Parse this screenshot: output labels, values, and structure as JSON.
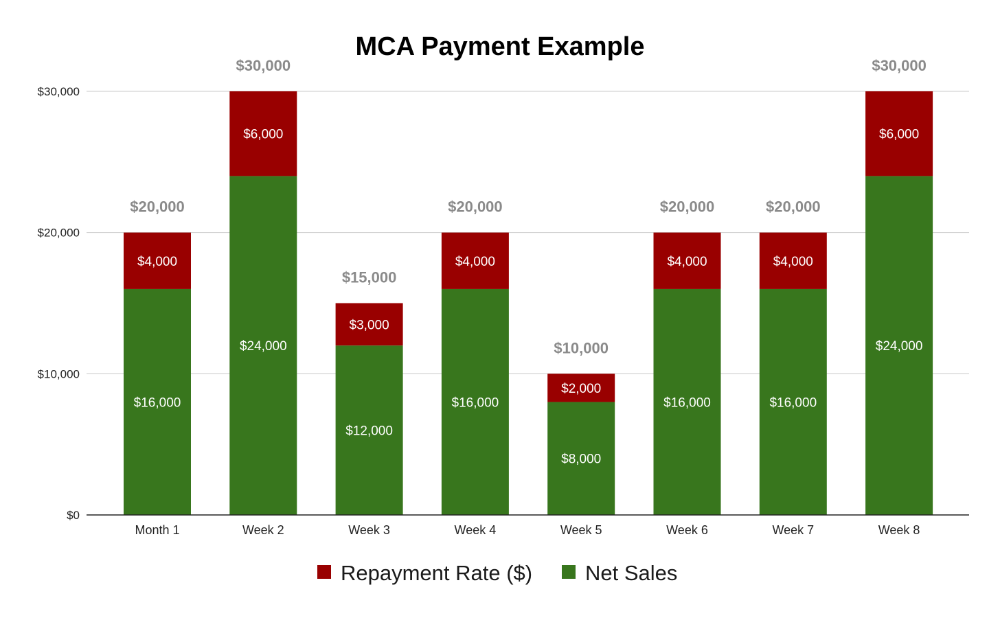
{
  "chart_data": {
    "type": "bar",
    "stacked": true,
    "title": "MCA Payment Example",
    "xlabel": "",
    "ylabel": "",
    "categories": [
      "Month 1",
      "Week 2",
      "Week 3",
      "Week 4",
      "Week 5",
      "Week 6",
      "Week 7",
      "Week 8"
    ],
    "series": [
      {
        "name": "Net Sales",
        "color": "#38761d",
        "values": [
          16000,
          24000,
          12000,
          16000,
          8000,
          16000,
          16000,
          24000
        ],
        "labels": [
          "$16,000",
          "$24,000",
          "$12,000",
          "$16,000",
          "$8,000",
          "$16,000",
          "$16,000",
          "$24,000"
        ]
      },
      {
        "name": "Repayment Rate ($)",
        "color": "#990000",
        "values": [
          4000,
          6000,
          3000,
          4000,
          2000,
          4000,
          4000,
          6000
        ],
        "labels": [
          "$4,000",
          "$6,000",
          "$3,000",
          "$4,000",
          "$2,000",
          "$4,000",
          "$4,000",
          "$6,000"
        ]
      }
    ],
    "totals": [
      20000,
      30000,
      15000,
      20000,
      10000,
      20000,
      20000,
      30000
    ],
    "total_labels": [
      "$20,000",
      "$30,000",
      "$15,000",
      "$20,000",
      "$10,000",
      "$20,000",
      "$20,000",
      "$30,000"
    ],
    "ylim": [
      0,
      30000
    ],
    "yticks": [
      0,
      10000,
      20000,
      30000
    ],
    "ytick_labels": [
      "$0",
      "$10,000",
      "$20,000",
      "$30,000"
    ],
    "grid": true,
    "legend_position": "bottom",
    "legend": [
      {
        "name": "Repayment Rate ($)",
        "color": "#990000"
      },
      {
        "name": "Net Sales",
        "color": "#38761d"
      }
    ]
  }
}
